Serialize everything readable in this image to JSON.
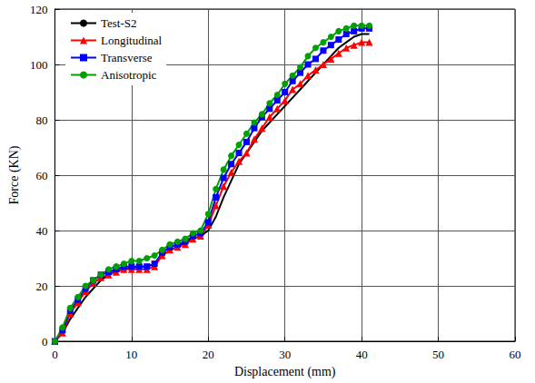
{
  "chart_data": {
    "type": "line",
    "x_label": "Displacement (mm)",
    "y_label": "Force (KN)",
    "xlim": [
      0,
      60
    ],
    "xticks": [
      0,
      10,
      20,
      30,
      40,
      50,
      60
    ],
    "ylim": [
      0,
      120
    ],
    "yticks": [
      0,
      20,
      40,
      60,
      80,
      100,
      120
    ],
    "grid": true,
    "legend": "top-left",
    "x": [
      0,
      1,
      2,
      3,
      4,
      5,
      6,
      7,
      8,
      9,
      10,
      11,
      12,
      13,
      14,
      15,
      16,
      17,
      18,
      19,
      20,
      21,
      22,
      23,
      24,
      25,
      26,
      27,
      28,
      29,
      30,
      31,
      32,
      33,
      34,
      35,
      36,
      37,
      38,
      39,
      40,
      41
    ],
    "series": [
      {
        "name": "Test-S2",
        "color": "#000000",
        "marker": "none",
        "line_style": "solid",
        "values": [
          0,
          3,
          8,
          12,
          16,
          19,
          22,
          24,
          25.5,
          26,
          26.5,
          27,
          27,
          28,
          31,
          33,
          34,
          36,
          37,
          38,
          40,
          45,
          52,
          58,
          64,
          68,
          72,
          76,
          79,
          82,
          85,
          88,
          91,
          94,
          97,
          100,
          103,
          106,
          108,
          110,
          111,
          111
        ]
      },
      {
        "name": "Longitudinal",
        "color": "#ff0000",
        "marker": "triangle",
        "line_style": "solid",
        "values": [
          0,
          3,
          10,
          14,
          18,
          21,
          23,
          24,
          25,
          26,
          26,
          26,
          26,
          27,
          31,
          33,
          34,
          35,
          37,
          38,
          42,
          49,
          56,
          61,
          65,
          68,
          73,
          77,
          81,
          84,
          87,
          91,
          93,
          96,
          98,
          100,
          102,
          104,
          106,
          107,
          108,
          108
        ]
      },
      {
        "name": "Transverse",
        "color": "#0000ff",
        "marker": "rect",
        "line_style": "solid",
        "values": [
          0,
          4,
          11,
          15,
          19,
          22,
          24,
          25,
          26,
          27,
          27,
          27,
          27,
          28,
          32,
          34,
          35,
          36,
          38,
          39,
          43,
          52,
          59,
          64,
          68,
          72,
          77,
          81,
          84,
          87,
          90,
          94,
          97,
          100,
          102,
          105,
          107,
          109,
          111,
          112,
          113,
          113
        ]
      },
      {
        "name": "Anisotropic",
        "color": "#00a000",
        "marker": "circle",
        "line_style": "solid",
        "values": [
          0,
          5,
          12,
          16,
          20,
          22,
          24,
          26,
          27,
          28,
          29,
          29,
          30,
          31,
          33,
          35,
          36,
          37,
          39,
          40,
          46,
          55,
          62,
          67,
          71,
          75,
          79,
          82,
          86,
          89,
          93,
          96,
          99,
          103,
          106,
          108,
          110,
          112,
          113,
          114,
          114,
          114
        ]
      }
    ]
  }
}
